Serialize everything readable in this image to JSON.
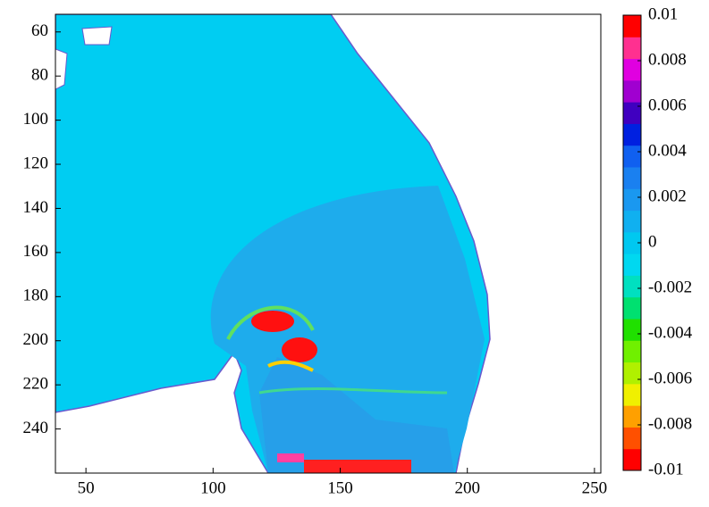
{
  "chart_data": {
    "type": "heatmap",
    "xlim": [
      38,
      252.5
    ],
    "xticks": [
      50,
      100,
      150,
      200,
      250
    ],
    "ylim": [
      52,
      260
    ],
    "yticks": [
      60,
      80,
      100,
      120,
      140,
      160,
      180,
      200,
      220,
      240
    ],
    "y_inverted": true,
    "colorbar": {
      "lim": [
        -0.01,
        0.01
      ],
      "ticks": [
        0.01,
        0.008,
        0.006,
        0.004,
        0.002,
        0,
        -0.002,
        -0.004,
        -0.006,
        -0.008,
        -0.01
      ],
      "colors": [
        "#ff0000",
        "#ff5000",
        "#ffa000",
        "#f0f000",
        "#b0f000",
        "#70f000",
        "#20e000",
        "#00e070",
        "#00e0c0",
        "#00d8f0",
        "#00c8f0",
        "#10b0f0",
        "#1a98f0",
        "#1a80f0",
        "#1060f0",
        "#0020e0",
        "#4000c0",
        "#a000d0",
        "#e000e0",
        "#ff3090",
        "#ff0000"
      ]
    }
  }
}
